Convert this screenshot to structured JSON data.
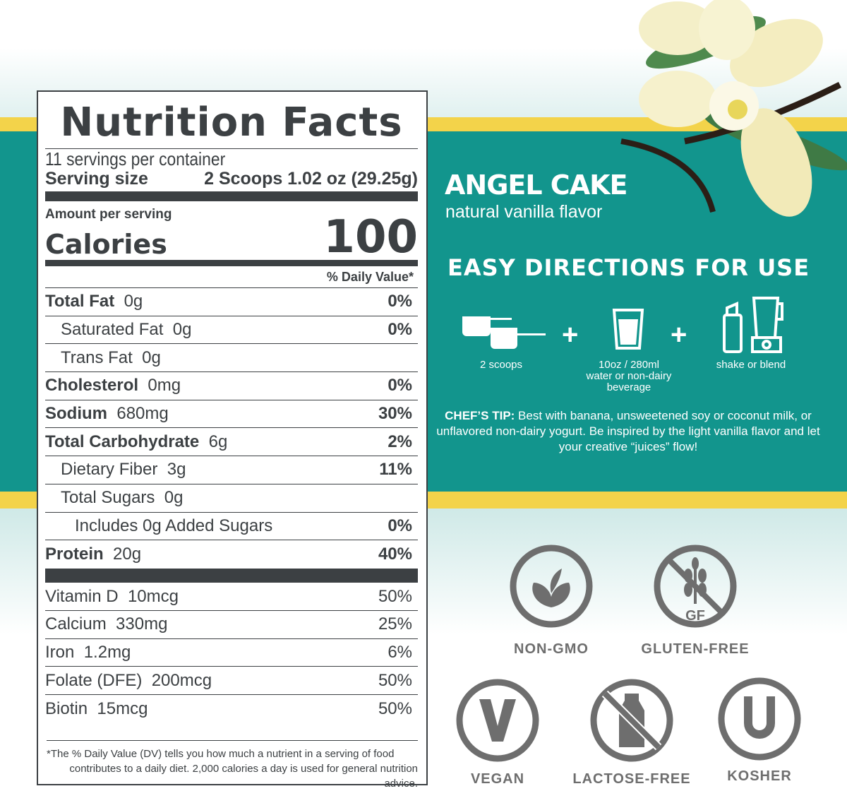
{
  "nutrition": {
    "title": "Nutrition Facts",
    "servings": "11 servings per container",
    "serving_size_label": "Serving size",
    "serving_size_value": "2 Scoops 1.02 oz (29.25g)",
    "amount_per_serving": "Amount per serving",
    "calories_label": "Calories",
    "calories_value": "100",
    "dv_header": "% Daily Value*",
    "rows": [
      {
        "name": "Total Fat",
        "amount": "0g",
        "dv": "0%",
        "bold": true,
        "indent": 0
      },
      {
        "name": "Saturated Fat",
        "amount": "0g",
        "dv": "0%",
        "bold": false,
        "indent": 1
      },
      {
        "name": "Trans Fat",
        "amount": "0g",
        "dv": "",
        "bold": false,
        "indent": 1
      },
      {
        "name": "Cholesterol",
        "amount": "0mg",
        "dv": "0%",
        "bold": true,
        "indent": 0
      },
      {
        "name": "Sodium",
        "amount": "680mg",
        "dv": "30%",
        "bold": true,
        "indent": 0
      },
      {
        "name": "Total Carbohydrate",
        "amount": "6g",
        "dv": "2%",
        "bold": true,
        "indent": 0
      },
      {
        "name": "Dietary Fiber",
        "amount": "3g",
        "dv": "11%",
        "bold": false,
        "indent": 1
      },
      {
        "name": "Total Sugars",
        "amount": "0g",
        "dv": "",
        "bold": false,
        "indent": 1
      },
      {
        "name": "Includes 0g Added Sugars",
        "amount": "",
        "dv": "0%",
        "bold": false,
        "indent": 2
      },
      {
        "name": "Protein",
        "amount": "20g",
        "dv": "40%",
        "bold": true,
        "indent": 0
      }
    ],
    "vitamins": [
      {
        "name": "Vitamin D",
        "amount": "10mcg",
        "dv": "50%"
      },
      {
        "name": "Calcium",
        "amount": "330mg",
        "dv": "25%"
      },
      {
        "name": "Iron",
        "amount": "1.2mg",
        "dv": "6%"
      },
      {
        "name": "Folate (DFE)",
        "amount": "200mcg",
        "dv": "50%"
      },
      {
        "name": "Biotin",
        "amount": "15mcg",
        "dv": "50%"
      }
    ],
    "footnote_1": "*The % Daily Value (DV) tells you how much a nutrient in a serving of food",
    "footnote_2": "contributes to a daily diet. 2,000 calories a day is used for general nutrition advice."
  },
  "product": {
    "name": "ANGEL CAKE",
    "flavor": "natural vanilla flavor"
  },
  "directions": {
    "heading": "EASY DIRECTIONS FOR USE",
    "steps": [
      "2 scoops",
      "10oz / 280ml\nwater or non-dairy\nbeverage",
      "shake or blend"
    ],
    "step2_lines": [
      "10oz / 280ml",
      "water or non-dairy",
      "beverage"
    ],
    "tip_label": "CHEF’S TIP:",
    "tip_text": " Best with banana, unsweetened soy or coconut milk, or unflavored non-dairy yogurt. Be inspired by the light vanilla flavor and let your creative “juices” flow!"
  },
  "badges": [
    "NON-GMO",
    "GLUTEN-FREE",
    "VEGAN",
    "LACTOSE-FREE",
    "KOSHER"
  ],
  "badge_gf_text": "GF",
  "colors": {
    "teal": "#12958d",
    "yellow": "#f3d34a",
    "text": "#3c4043",
    "badge_gray": "#6e6e6e"
  }
}
